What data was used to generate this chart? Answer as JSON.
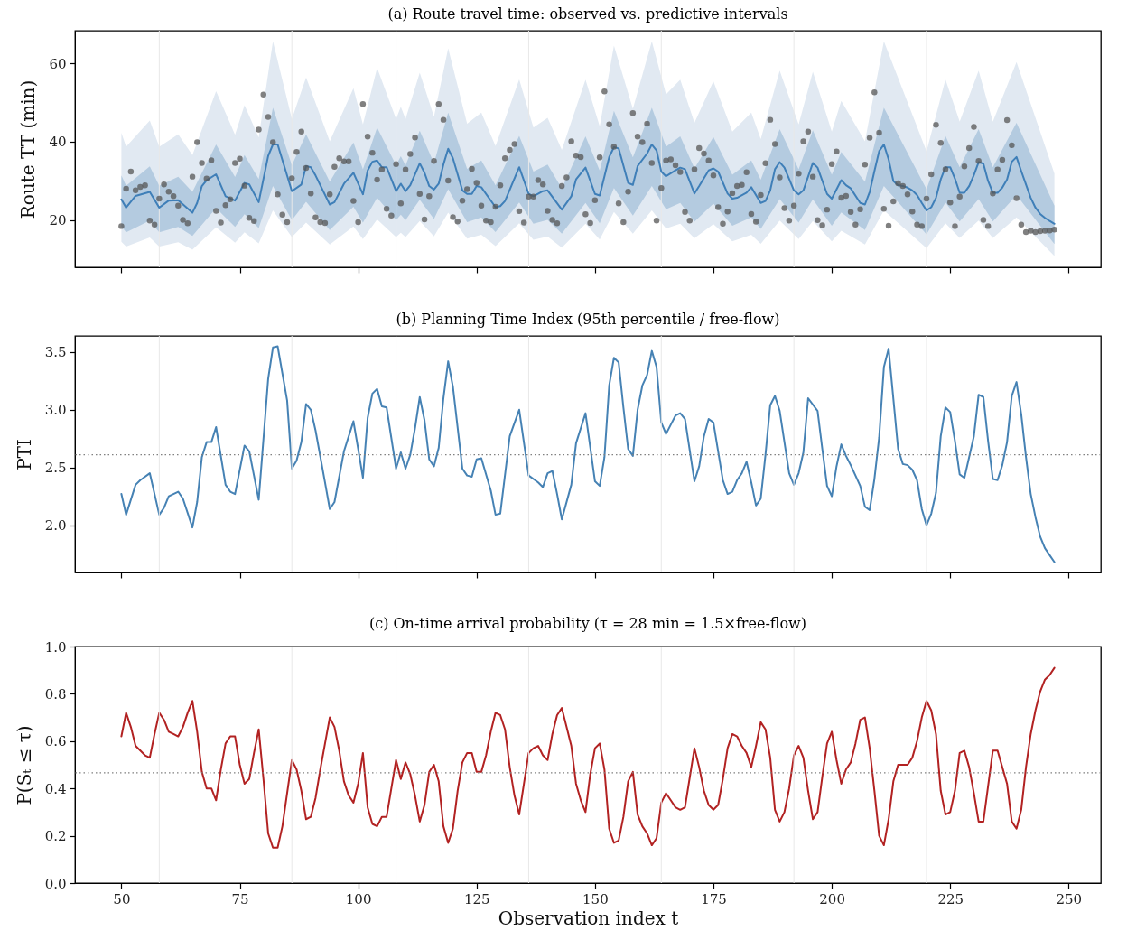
{
  "chart_data": [
    {
      "type": "line",
      "title": "(a) Route travel time: observed vs. predictive intervals",
      "ylabel": "Route TT (min)",
      "xlim": [
        40.2,
        256.8
      ],
      "xticks": [
        50,
        75,
        100,
        125,
        150,
        175,
        200,
        225,
        250
      ],
      "ylim": [
        8,
        68.3
      ],
      "yticks": [
        20,
        40,
        60
      ],
      "tick_labels": "y",
      "ref_lines": [
        {
          "axis": "x",
          "value": 58,
          "color": "#e8e8e8"
        },
        {
          "axis": "x",
          "value": 86,
          "color": "#e8e8e8"
        },
        {
          "axis": "x",
          "value": 108,
          "color": "#e8e8e8"
        },
        {
          "axis": "x",
          "value": 136,
          "color": "#e8e8e8"
        },
        {
          "axis": "x",
          "value": 164,
          "color": "#e8e8e8"
        },
        {
          "axis": "x",
          "value": 192,
          "color": "#e8e8e8"
        },
        {
          "axis": "x",
          "value": 220,
          "color": "#e8e8e8"
        }
      ],
      "series": [
        {
          "type": "line",
          "color": "#e1e9f2",
          "x": [
            50,
            51,
            56,
            58,
            62,
            65,
            70,
            74,
            76,
            79,
            82,
            86,
            89,
            94,
            99,
            101,
            104,
            108,
            109,
            110,
            113,
            116,
            119,
            123,
            126,
            129,
            134,
            137,
            140,
            143,
            148,
            151,
            154,
            158,
            162,
            165,
            168,
            171,
            175,
            179,
            183,
            185,
            189,
            193,
            196,
            200,
            202,
            207,
            211,
            220,
            224,
            227,
            231,
            234,
            239,
            247
          ],
          "values": [
            null,
            null,
            null,
            null,
            null,
            null,
            null,
            null,
            null,
            null,
            null,
            null,
            null,
            null,
            null,
            null,
            null,
            null,
            null,
            null,
            null,
            null,
            null,
            null,
            null,
            null,
            null,
            null,
            null,
            null,
            null,
            null,
            null,
            null,
            null,
            null,
            null,
            null,
            null,
            null,
            null,
            null,
            null,
            null,
            null,
            null,
            null,
            null,
            null,
            null,
            null,
            null,
            null,
            null,
            null,
            null
          ],
          "upper": [
            42.3,
            38.7,
            45.4,
            38.7,
            41.9,
            36.6,
            52.9,
            41.8,
            49.3,
            41.1,
            65.6,
            45.8,
            56.4,
            40.1,
            53.6,
            44.4,
            58.8,
            45.8,
            48.9,
            45.8,
            57.6,
            46.4,
            63.8,
            44.6,
            47.4,
            38.9,
            55.9,
            43.6,
            46.1,
            37.9,
            55.8,
            43.9,
            64.5,
            48.4,
            65.6,
            52.1,
            55.8,
            44.8,
            55.4,
            42.6,
            47.4,
            40.7,
            58.1,
            44.4,
            57.8,
            42.6,
            50.4,
            40.1,
            65.6,
            37.6,
            55.9,
            45.1,
            58.1,
            45.1,
            60.3,
            31.9
          ],
          "lower": [
            14.5,
            13.3,
            15.6,
            13.3,
            14.4,
            12.5,
            18.2,
            14.3,
            16.9,
            14.1,
            22.5,
            15.7,
            19.4,
            13.8,
            18.4,
            15.2,
            20.2,
            15.7,
            16.8,
            15.7,
            19.8,
            15.9,
            21.9,
            15.3,
            16.3,
            13.4,
            19.2,
            15.0,
            15.8,
            13.0,
            19.1,
            15.1,
            22.1,
            16.6,
            22.5,
            17.9,
            19.1,
            15.4,
            19.0,
            14.6,
            16.3,
            14.0,
            19.9,
            15.2,
            19.8,
            14.6,
            17.3,
            13.8,
            22.5,
            12.9,
            19.2,
            15.5,
            19.9,
            15.5,
            20.7,
            10.9
          ]
        },
        {
          "type": "line",
          "color": "#b4cbe0",
          "x": [
            50,
            51,
            56,
            58,
            62,
            65,
            70,
            74,
            76,
            79,
            82,
            86,
            89,
            94,
            99,
            101,
            104,
            108,
            109,
            110,
            113,
            116,
            119,
            123,
            126,
            129,
            134,
            137,
            140,
            143,
            148,
            151,
            154,
            158,
            162,
            165,
            168,
            171,
            175,
            179,
            183,
            185,
            189,
            193,
            196,
            200,
            202,
            207,
            211,
            220,
            224,
            227,
            231,
            234,
            239,
            247
          ],
          "values": [
            null,
            null,
            null,
            null,
            null,
            null,
            null,
            null,
            null,
            null,
            null,
            null,
            null,
            null,
            null,
            null,
            null,
            null,
            null,
            null,
            null,
            null,
            null,
            null,
            null,
            null,
            null,
            null,
            null,
            null,
            null,
            null,
            null,
            null,
            null,
            null,
            null,
            null,
            null,
            null,
            null,
            null,
            null,
            null,
            null,
            null,
            null,
            null,
            null,
            null,
            null,
            null,
            null,
            null,
            null,
            null
          ],
          "upper": [
            31.4,
            28.8,
            33.7,
            28.8,
            31.1,
            27.2,
            39.3,
            31.0,
            36.6,
            30.5,
            48.7,
            34.0,
            41.9,
            29.8,
            39.8,
            33.0,
            43.6,
            34.0,
            36.3,
            34.0,
            42.8,
            34.5,
            47.4,
            33.1,
            35.2,
            28.9,
            41.5,
            32.4,
            34.2,
            28.1,
            41.4,
            32.6,
            47.9,
            36.0,
            48.7,
            38.7,
            41.4,
            33.2,
            41.2,
            31.6,
            35.2,
            30.3,
            43.2,
            33.0,
            42.9,
            31.6,
            37.4,
            29.8,
            48.7,
            27.9,
            41.5,
            33.5,
            43.2,
            33.5,
            44.8,
            23.7
          ],
          "lower": [
            18.5,
            16.9,
            19.9,
            16.9,
            18.3,
            16.0,
            23.1,
            18.3,
            21.5,
            18.0,
            28.7,
            20.0,
            24.7,
            17.5,
            23.4,
            19.4,
            25.7,
            20.0,
            21.4,
            20.0,
            25.2,
            20.3,
            27.9,
            19.5,
            20.7,
            17.0,
            24.5,
            19.1,
            20.1,
            16.6,
            24.4,
            19.2,
            28.2,
            21.2,
            28.7,
            22.8,
            24.4,
            19.6,
            24.2,
            18.6,
            20.7,
            17.8,
            25.4,
            19.4,
            25.3,
            18.6,
            22.0,
            17.5,
            28.7,
            16.4,
            24.5,
            19.7,
            25.4,
            19.7,
            26.4,
            13.9
          ]
        },
        {
          "type": "line",
          "color": "#3f7fb8",
          "x": [
            50,
            51,
            53,
            56,
            58,
            60,
            62,
            65,
            66,
            67,
            68,
            70,
            72,
            74,
            76,
            77,
            79,
            81,
            82,
            83,
            86,
            88,
            89,
            90,
            91,
            94,
            95,
            97,
            99,
            101,
            102,
            103,
            104,
            105,
            106,
            108,
            109,
            110,
            111,
            113,
            114,
            115,
            116,
            117,
            118,
            119,
            120,
            122,
            123,
            124,
            125,
            126,
            129,
            130,
            131,
            134,
            136,
            137,
            139,
            140,
            143,
            145,
            146,
            148,
            150,
            151,
            153,
            154,
            155,
            157,
            158,
            159,
            161,
            162,
            163,
            164,
            165,
            167,
            168,
            169,
            171,
            172,
            174,
            175,
            176,
            178,
            179,
            180,
            182,
            183,
            185,
            186,
            187,
            188,
            189,
            190,
            192,
            193,
            194,
            196,
            197,
            199,
            200,
            202,
            203,
            204,
            206,
            207,
            208,
            209,
            210,
            211,
            212,
            213,
            214,
            215,
            216,
            217,
            218,
            219,
            220,
            221,
            222,
            223,
            224,
            225,
            226,
            227,
            228,
            229,
            230,
            231,
            232,
            233,
            234,
            235,
            236,
            237,
            238,
            239,
            240,
            242,
            243,
            244,
            245,
            246,
            247
          ],
          "values": [
            25.3,
            23.2,
            26.2,
            27.2,
            23.2,
            25.0,
            25.1,
            21.9,
            24.4,
            28.7,
            30.2,
            31.7,
            26.1,
            25.0,
            29.5,
            29.1,
            24.6,
            36.4,
            39.3,
            39.3,
            27.4,
            29.1,
            33.8,
            33.5,
            31.4,
            24.0,
            24.6,
            29.3,
            32.1,
            26.6,
            32.7,
            34.9,
            35.2,
            33.5,
            33.5,
            27.4,
            29.3,
            27.4,
            28.9,
            34.5,
            32.1,
            28.7,
            27.8,
            29.3,
            34.2,
            38.2,
            35.8,
            27.6,
            26.7,
            26.7,
            28.7,
            28.4,
            23.3,
            23.6,
            24.9,
            33.5,
            26.7,
            26.1,
            27.4,
            27.6,
            22.7,
            26.1,
            30.4,
            33.4,
            26.7,
            26.3,
            36.1,
            38.6,
            38.3,
            29.5,
            29.0,
            33.8,
            37.0,
            39.3,
            37.8,
            32.4,
            31.2,
            32.7,
            33.4,
            33.0,
            26.8,
            28.7,
            32.7,
            33.2,
            32.4,
            26.8,
            25.5,
            25.7,
            27.0,
            28.4,
            24.4,
            24.9,
            27.6,
            33.0,
            34.8,
            33.4,
            27.6,
            26.6,
            27.6,
            34.6,
            33.4,
            26.7,
            25.5,
            30.2,
            28.9,
            28.1,
            24.4,
            24.0,
            27.2,
            32.5,
            37.6,
            39.3,
            35.5,
            30.0,
            28.9,
            28.7,
            28.3,
            27.6,
            26.4,
            24.4,
            22.5,
            23.3,
            25.7,
            30.4,
            33.5,
            33.5,
            30.6,
            27.0,
            27.0,
            28.7,
            31.5,
            34.8,
            34.4,
            30.0,
            27.0,
            27.0,
            28.3,
            30.4,
            34.9,
            36.1,
            32.5,
            25.7,
            23.2,
            21.6,
            20.6,
            19.8,
            19.1
          ]
        },
        {
          "type": "scatter",
          "color": "#555555",
          "marker": "circle",
          "x": [
            50,
            51,
            52,
            53,
            54,
            55,
            56,
            57,
            58,
            59,
            60,
            61,
            62,
            63,
            64,
            65,
            66,
            67,
            68,
            69,
            70,
            71,
            72,
            73,
            74,
            75,
            76,
            77,
            78,
            79,
            80,
            81,
            82,
            83,
            84,
            85,
            86,
            87,
            88,
            89,
            90,
            91,
            92,
            93,
            94,
            95,
            96,
            97,
            98,
            99,
            100,
            101,
            102,
            103,
            104,
            105,
            106,
            107,
            108,
            109,
            110,
            111,
            112,
            113,
            114,
            115,
            116,
            117,
            118,
            119,
            120,
            121,
            122,
            123,
            124,
            125,
            126,
            127,
            128,
            129,
            130,
            131,
            132,
            133,
            134,
            135,
            136,
            137,
            138,
            139,
            140,
            141,
            142,
            143,
            144,
            145,
            146,
            147,
            148,
            149,
            150,
            151,
            152,
            153,
            154,
            155,
            156,
            157,
            158,
            159,
            160,
            161,
            162,
            163,
            164,
            165,
            166,
            167,
            168,
            169,
            170,
            171,
            172,
            173,
            174,
            175,
            176,
            177,
            178,
            179,
            180,
            181,
            182,
            183,
            184,
            185,
            186,
            187,
            188,
            189,
            190,
            191,
            192,
            193,
            194,
            195,
            196,
            197,
            198,
            199,
            200,
            201,
            202,
            203,
            204,
            205,
            206,
            207,
            208,
            209,
            210,
            211,
            212,
            213,
            214,
            215,
            216,
            217,
            218,
            219,
            220,
            221,
            222,
            223,
            224,
            225,
            226,
            227,
            228,
            229,
            230,
            231,
            232,
            233,
            234,
            235,
            236,
            237,
            238,
            239,
            240,
            241,
            242,
            243,
            244,
            245,
            246,
            247
          ],
          "values": [
            18.5,
            28.0,
            32.4,
            27.6,
            28.5,
            28.9,
            19.9,
            18.9,
            25.5,
            29.1,
            27.3,
            26.1,
            23.7,
            20.1,
            19.2,
            31.1,
            39.9,
            34.6,
            30.6,
            35.3,
            22.4,
            19.4,
            23.8,
            25.3,
            34.6,
            35.7,
            28.8,
            20.6,
            19.8,
            43.1,
            52.0,
            46.3,
            39.9,
            26.6,
            21.4,
            19.5,
            30.7,
            37.4,
            42.6,
            33.3,
            26.8,
            20.7,
            19.5,
            19.3,
            26.6,
            33.6,
            35.8,
            35.0,
            35.0,
            24.9,
            19.5,
            49.6,
            41.3,
            37.2,
            30.3,
            32.9,
            22.9,
            21.2,
            34.3,
            24.3,
            32.9,
            36.9,
            41.1,
            26.7,
            20.2,
            26.1,
            35.1,
            49.6,
            45.6,
            30.1,
            20.8,
            19.7,
            25.0,
            27.9,
            33.1,
            29.5,
            23.7,
            19.9,
            19.5,
            23.4,
            28.9,
            35.8,
            37.9,
            39.4,
            22.3,
            19.4,
            26.0,
            26.0,
            30.2,
            29.1,
            22.4,
            20.1,
            19.2,
            28.7,
            30.9,
            40.1,
            36.5,
            36.1,
            21.5,
            19.3,
            25.1,
            36.0,
            52.8,
            44.4,
            38.7,
            24.3,
            19.5,
            27.3,
            47.3,
            41.3,
            39.9,
            44.6,
            34.6,
            19.9,
            28.2,
            35.2,
            35.5,
            34.0,
            32.3,
            22.1,
            19.9,
            33.0,
            38.4,
            37.0,
            35.2,
            31.4,
            23.3,
            19.1,
            22.2,
            26.9,
            28.7,
            29.0,
            32.2,
            21.6,
            19.6,
            26.4,
            34.5,
            45.6,
            39.4,
            30.9,
            23.1,
            19.9,
            23.7,
            31.9,
            40.1,
            42.6,
            31.1,
            20.0,
            18.7,
            22.7,
            34.3,
            37.5,
            25.7,
            26.2,
            22.1,
            18.9,
            22.8,
            34.2,
            41.0,
            52.6,
            42.3,
            22.9,
            18.6,
            24.8,
            29.4,
            28.7,
            26.6,
            22.2,
            18.9,
            18.5,
            25.5,
            31.7,
            44.3,
            39.7,
            33.0,
            24.5,
            18.5,
            26.0,
            33.7,
            38.4,
            43.8,
            35.1,
            20.1,
            18.5,
            26.8,
            32.9,
            35.4,
            45.5,
            39.1,
            25.6,
            18.9,
            17.0,
            17.3,
            17.0,
            17.2,
            17.3,
            17.4,
            17.6
          ]
        }
      ]
    },
    {
      "type": "line",
      "title": "(b) Planning Time Index (95th percentile / free-flow)",
      "ylabel": "PTI",
      "xlim": [
        40.2,
        256.8
      ],
      "xticks": [
        50,
        75,
        100,
        125,
        150,
        175,
        200,
        225,
        250
      ],
      "ylim": [
        1.59,
        3.64
      ],
      "yticks": [
        {
          "value": 2,
          "label": "2.0"
        },
        2.5,
        {
          "value": 3,
          "label": "3.0"
        },
        3.5
      ],
      "tick_labels": "y",
      "ref_lines": [
        {
          "axis": "x",
          "value": 58,
          "color": "#e8e8e8"
        },
        {
          "axis": "x",
          "value": 86,
          "color": "#e8e8e8"
        },
        {
          "axis": "x",
          "value": 108,
          "color": "#e8e8e8"
        },
        {
          "axis": "x",
          "value": 136,
          "color": "#e8e8e8"
        },
        {
          "axis": "x",
          "value": 164,
          "color": "#e8e8e8"
        },
        {
          "axis": "x",
          "value": 192,
          "color": "#e8e8e8"
        },
        {
          "axis": "x",
          "value": 220,
          "color": "#e8e8e8"
        },
        {
          "axis": "y",
          "value": 2.61,
          "color": "#808080",
          "line_style": "dotted"
        }
      ],
      "series": [
        {
          "color": "#4682b4",
          "x": [
            50,
            51,
            53,
            54,
            56,
            58,
            59,
            60,
            62,
            63,
            65,
            66,
            67,
            68,
            69,
            70,
            72,
            73,
            74,
            76,
            77,
            78,
            79,
            81,
            82,
            83,
            85,
            86,
            87,
            88,
            89,
            90,
            91,
            93,
            94,
            95,
            97,
            99,
            100,
            101,
            102,
            103,
            104,
            105,
            106,
            108,
            109,
            110,
            111,
            112,
            113,
            114,
            115,
            116,
            117,
            118,
            119,
            120,
            122,
            123,
            124,
            125,
            126,
            128,
            129,
            130,
            132,
            134,
            136,
            138,
            139,
            140,
            141,
            142,
            143,
            145,
            146,
            147,
            148,
            150,
            151,
            152,
            153,
            154,
            155,
            156,
            157,
            158,
            159,
            160,
            161,
            162,
            163,
            164,
            165,
            166,
            167,
            168,
            169,
            171,
            172,
            173,
            174,
            175,
            177,
            178,
            179,
            180,
            181,
            182,
            183,
            184,
            185,
            186,
            187,
            188,
            189,
            191,
            192,
            193,
            194,
            195,
            197,
            198,
            199,
            200,
            201,
            202,
            203,
            204,
            206,
            207,
            208,
            209,
            210,
            211,
            212,
            214,
            215,
            216,
            217,
            218,
            219,
            220,
            221,
            222,
            223,
            224,
            225,
            226,
            227,
            228,
            229,
            230,
            231,
            232,
            233,
            234,
            235,
            236,
            237,
            238,
            239,
            240,
            241,
            242,
            243,
            244,
            245,
            246,
            247
          ],
          "values": [
            2.27,
            2.09,
            2.35,
            2.39,
            2.45,
            2.09,
            2.15,
            2.25,
            2.29,
            2.23,
            1.98,
            2.2,
            2.59,
            2.72,
            2.72,
            2.85,
            2.35,
            2.29,
            2.27,
            2.69,
            2.64,
            2.43,
            2.22,
            3.27,
            3.54,
            3.55,
            3.08,
            2.49,
            2.56,
            2.72,
            3.05,
            3.0,
            2.82,
            2.37,
            2.14,
            2.2,
            2.64,
            2.9,
            2.66,
            2.41,
            2.93,
            3.14,
            3.18,
            3.03,
            3.02,
            2.49,
            2.63,
            2.49,
            2.61,
            2.84,
            3.11,
            2.91,
            2.57,
            2.51,
            2.67,
            3.1,
            3.42,
            3.2,
            2.49,
            2.43,
            2.42,
            2.57,
            2.58,
            2.3,
            2.09,
            2.1,
            2.77,
            3.0,
            2.43,
            2.37,
            2.33,
            2.45,
            2.47,
            2.27,
            2.05,
            2.35,
            2.71,
            2.84,
            2.97,
            2.38,
            2.34,
            2.59,
            3.21,
            3.45,
            3.41,
            3.02,
            2.66,
            2.6,
            3.0,
            3.21,
            3.3,
            3.51,
            3.37,
            2.89,
            2.79,
            2.87,
            2.95,
            2.97,
            2.92,
            2.38,
            2.51,
            2.77,
            2.92,
            2.89,
            2.39,
            2.27,
            2.29,
            2.39,
            2.45,
            2.55,
            2.37,
            2.17,
            2.23,
            2.61,
            3.04,
            3.12,
            2.99,
            2.45,
            2.35,
            2.45,
            2.63,
            3.1,
            2.99,
            2.66,
            2.34,
            2.25,
            2.51,
            2.7,
            2.6,
            2.52,
            2.34,
            2.16,
            2.13,
            2.4,
            2.76,
            3.37,
            3.53,
            2.66,
            2.53,
            2.52,
            2.48,
            2.39,
            2.14,
            2.0,
            2.1,
            2.28,
            2.77,
            3.02,
            2.98,
            2.73,
            2.44,
            2.41,
            2.59,
            2.77,
            3.13,
            3.11,
            2.73,
            2.4,
            2.39,
            2.52,
            2.72,
            3.12,
            3.24,
            2.96,
            2.59,
            2.27,
            2.07,
            1.9,
            1.8,
            1.74,
            1.68
          ]
        }
      ]
    },
    {
      "type": "line",
      "title": "(c) On-time arrival probability (τ = 28 min = 1.5×free-flow)",
      "xlabel": "Observation index t",
      "ylabel": "P(Sₜ ≤ τ)",
      "xlim": [
        40.2,
        256.8
      ],
      "xticks": [
        50,
        75,
        100,
        125,
        150,
        175,
        200,
        225,
        250
      ],
      "ylim": [
        0,
        1
      ],
      "yticks": [
        {
          "value": 0,
          "label": "0.0"
        },
        0.2,
        0.4,
        0.6,
        0.8,
        {
          "value": 1,
          "label": "1.0"
        }
      ],
      "ref_lines": [
        {
          "axis": "x",
          "value": 58,
          "color": "#e8e8e8"
        },
        {
          "axis": "x",
          "value": 86,
          "color": "#e8e8e8"
        },
        {
          "axis": "x",
          "value": 108,
          "color": "#e8e8e8"
        },
        {
          "axis": "x",
          "value": 136,
          "color": "#e8e8e8"
        },
        {
          "axis": "x",
          "value": 164,
          "color": "#e8e8e8"
        },
        {
          "axis": "x",
          "value": 192,
          "color": "#e8e8e8"
        },
        {
          "axis": "x",
          "value": 220,
          "color": "#e8e8e8"
        },
        {
          "axis": "y",
          "value": 0.466,
          "color": "#808080",
          "line_style": "dotted"
        }
      ],
      "series": [
        {
          "color": "#b22222",
          "x": [
            50,
            51,
            52,
            53,
            54,
            55,
            56,
            57,
            58,
            59,
            60,
            61,
            62,
            63,
            64,
            65,
            66,
            67,
            68,
            69,
            70,
            71,
            72,
            73,
            74,
            75,
            76,
            77,
            78,
            79,
            80,
            81,
            82,
            83,
            84,
            85,
            86,
            87,
            88,
            89,
            90,
            91,
            92,
            93,
            94,
            95,
            96,
            97,
            98,
            99,
            100,
            101,
            102,
            103,
            104,
            105,
            106,
            107,
            108,
            109,
            110,
            111,
            112,
            113,
            114,
            115,
            116,
            117,
            118,
            119,
            120,
            121,
            122,
            123,
            124,
            125,
            126,
            127,
            128,
            129,
            130,
            131,
            132,
            133,
            134,
            135,
            136,
            137,
            138,
            139,
            140,
            141,
            142,
            143,
            144,
            145,
            146,
            147,
            148,
            149,
            150,
            151,
            152,
            153,
            154,
            155,
            156,
            157,
            158,
            159,
            160,
            161,
            162,
            163,
            164,
            165,
            166,
            167,
            168,
            169,
            171,
            172,
            173,
            174,
            175,
            176,
            177,
            178,
            179,
            180,
            181,
            182,
            183,
            184,
            185,
            186,
            187,
            188,
            189,
            190,
            191,
            192,
            193,
            194,
            195,
            196,
            197,
            198,
            199,
            200,
            201,
            202,
            203,
            204,
            205,
            206,
            207,
            208,
            209,
            210,
            211,
            212,
            213,
            214,
            215,
            216,
            217,
            218,
            219,
            220,
            221,
            222,
            223,
            224,
            225,
            226,
            227,
            228,
            229,
            230,
            231,
            232,
            233,
            234,
            235,
            236,
            237,
            238,
            239,
            240,
            241,
            242,
            243,
            244,
            245,
            246,
            247
          ],
          "values": [
            0.62,
            0.72,
            0.66,
            0.58,
            0.56,
            0.54,
            0.53,
            0.63,
            0.72,
            0.69,
            0.64,
            0.63,
            0.62,
            0.66,
            0.72,
            0.77,
            0.64,
            0.47,
            0.4,
            0.4,
            0.35,
            0.48,
            0.59,
            0.62,
            0.62,
            0.5,
            0.42,
            0.44,
            0.55,
            0.65,
            0.44,
            0.21,
            0.15,
            0.15,
            0.24,
            0.38,
            0.52,
            0.48,
            0.39,
            0.27,
            0.28,
            0.36,
            0.48,
            0.59,
            0.7,
            0.66,
            0.56,
            0.43,
            0.37,
            0.34,
            0.42,
            0.55,
            0.32,
            0.25,
            0.24,
            0.28,
            0.28,
            0.4,
            0.52,
            0.44,
            0.51,
            0.46,
            0.37,
            0.26,
            0.33,
            0.47,
            0.5,
            0.43,
            0.24,
            0.17,
            0.23,
            0.39,
            0.51,
            0.55,
            0.55,
            0.47,
            0.47,
            0.54,
            0.64,
            0.72,
            0.71,
            0.65,
            0.49,
            0.37,
            0.29,
            0.42,
            0.55,
            0.57,
            0.58,
            0.54,
            0.52,
            0.63,
            0.71,
            0.74,
            0.66,
            0.58,
            0.42,
            0.35,
            0.3,
            0.46,
            0.57,
            0.59,
            0.48,
            0.23,
            0.17,
            0.18,
            0.28,
            0.43,
            0.47,
            0.29,
            0.24,
            0.21,
            0.16,
            0.19,
            0.34,
            0.38,
            0.35,
            0.32,
            0.31,
            0.32,
            0.57,
            0.49,
            0.39,
            0.33,
            0.31,
            0.33,
            0.44,
            0.57,
            0.63,
            0.62,
            0.58,
            0.55,
            0.49,
            0.58,
            0.68,
            0.65,
            0.53,
            0.31,
            0.26,
            0.3,
            0.4,
            0.54,
            0.58,
            0.53,
            0.39,
            0.27,
            0.3,
            0.45,
            0.59,
            0.64,
            0.52,
            0.42,
            0.48,
            0.51,
            0.59,
            0.69,
            0.7,
            0.57,
            0.39,
            0.2,
            0.16,
            0.27,
            0.43,
            0.5,
            0.5,
            0.5,
            0.53,
            0.6,
            0.7,
            0.77,
            0.73,
            0.63,
            0.39,
            0.29,
            0.3,
            0.39,
            0.55,
            0.56,
            0.49,
            0.38,
            0.26,
            0.26,
            0.41,
            0.56,
            0.56,
            0.49,
            0.42,
            0.26,
            0.23,
            0.31,
            0.49,
            0.63,
            0.73,
            0.81,
            0.86,
            0.88,
            0.91
          ]
        }
      ]
    }
  ]
}
